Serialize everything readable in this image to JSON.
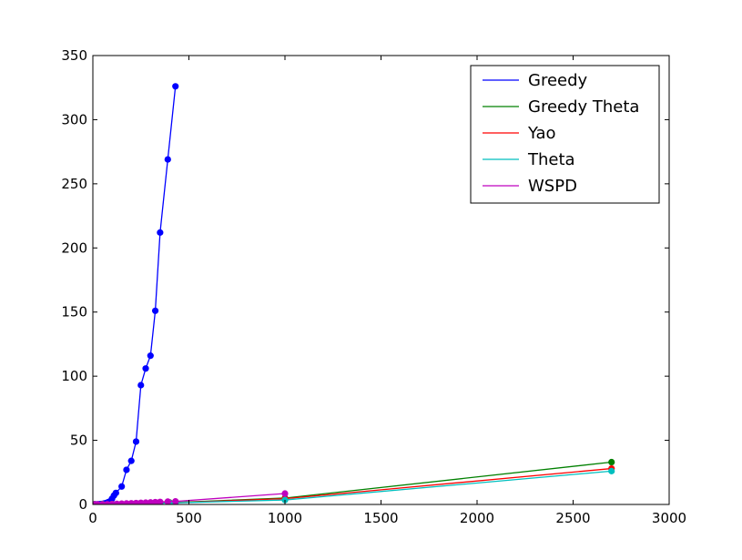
{
  "chart_data": {
    "type": "line",
    "title": "",
    "xlabel": "",
    "ylabel": "",
    "xlim": [
      0,
      3000
    ],
    "ylim": [
      0,
      350
    ],
    "xticks": [
      0,
      500,
      1000,
      1500,
      2000,
      2500,
      3000
    ],
    "yticks": [
      0,
      50,
      100,
      150,
      200,
      250,
      300,
      350
    ],
    "grid": false,
    "legend_position": "top-right",
    "series": [
      {
        "name": "Greedy",
        "color": "#0000ff",
        "x": [
          10,
          20,
          30,
          40,
          50,
          60,
          70,
          80,
          90,
          100,
          110,
          120,
          150,
          175,
          200,
          225,
          250,
          275,
          300,
          325,
          350,
          390,
          430
        ],
        "y": [
          0.1,
          0.1,
          0.2,
          0.3,
          0.5,
          0.8,
          1.2,
          1.8,
          2.5,
          4.5,
          7,
          9,
          14,
          27,
          34,
          49,
          93,
          106,
          116,
          151,
          212,
          269,
          326
        ]
      },
      {
        "name": "Greedy Theta",
        "color": "#008000",
        "x": [
          10,
          50,
          100,
          150,
          200,
          250,
          300,
          350,
          400,
          430,
          1000,
          2700
        ],
        "y": [
          0.1,
          0.2,
          0.3,
          0.4,
          0.6,
          0.8,
          1.0,
          1.2,
          1.5,
          1.6,
          5,
          33
        ]
      },
      {
        "name": "Yao",
        "color": "#ff0000",
        "x": [
          10,
          50,
          100,
          150,
          200,
          250,
          300,
          350,
          400,
          430,
          1000,
          2700
        ],
        "y": [
          0.1,
          0.2,
          0.3,
          0.4,
          0.5,
          0.7,
          0.9,
          1.1,
          1.3,
          1.4,
          4.5,
          28
        ]
      },
      {
        "name": "Theta",
        "color": "#00bfbf",
        "x": [
          10,
          50,
          100,
          150,
          200,
          250,
          300,
          350,
          400,
          430,
          1000,
          2700
        ],
        "y": [
          0.1,
          0.2,
          0.3,
          0.4,
          0.5,
          0.6,
          0.8,
          1.0,
          1.2,
          1.3,
          3.5,
          26
        ]
      },
      {
        "name": "WSPD",
        "color": "#bf00bf",
        "x": [
          10,
          25,
          50,
          75,
          100,
          125,
          150,
          175,
          200,
          225,
          250,
          275,
          300,
          325,
          350,
          390,
          430,
          1000
        ],
        "y": [
          0.1,
          0.1,
          0.1,
          0.2,
          0.3,
          0.5,
          0.6,
          0.8,
          0.9,
          1.1,
          1.3,
          1.4,
          1.6,
          1.8,
          2.0,
          2.2,
          2.4,
          8.5
        ]
      }
    ]
  }
}
